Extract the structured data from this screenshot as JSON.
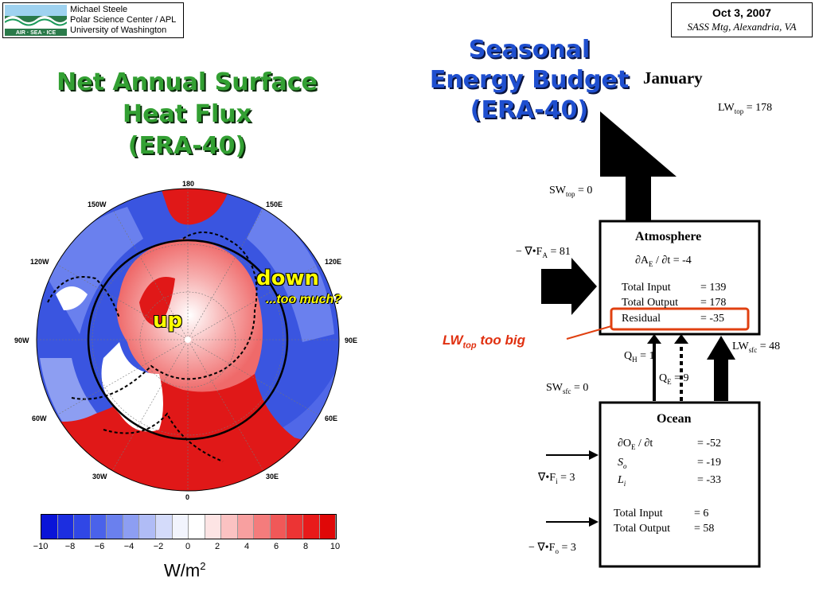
{
  "header": {
    "logo_caption": "AIR · SEA · ICE",
    "author_lines": [
      "Michael Steele",
      "Polar Science Center / APL",
      "University of Washington"
    ],
    "date": "Oct 3, 2007",
    "meeting": "SASS Mtg, Alexandria, VA"
  },
  "left_panel": {
    "title_lines": [
      "Net Annual Surface",
      "Heat Flux",
      "(ERA-40)"
    ],
    "longitude_labels": {
      "l180": "180",
      "l150w": "150W",
      "l150e": "150E",
      "l120w": "120W",
      "l120e": "120E",
      "l90w": "90W",
      "l90e": "90E",
      "l60w": "60W",
      "l60e": "60E",
      "l30w": "30W",
      "l30e": "30E",
      "l0": "0"
    },
    "annotations": {
      "down": "down",
      "too_much": "...too much?",
      "up": "up"
    },
    "colorbar": {
      "ticks": [
        "−10",
        "−8",
        "−6",
        "−4",
        "−2",
        "0",
        "2",
        "4",
        "6",
        "8",
        "10"
      ],
      "colors": [
        "#0a14d8",
        "#1c2ee0",
        "#3047e6",
        "#4a62ea",
        "#6a80ee",
        "#8d9ef2",
        "#b0bcf6",
        "#d4dbfa",
        "#f2f4fd",
        "#ffffff",
        "#fde4e4",
        "#fbc2c2",
        "#f8a0a0",
        "#f47c7c",
        "#f05858",
        "#ec3434",
        "#e81a1a",
        "#e00808"
      ],
      "units": "W/m",
      "units_sup": "2"
    },
    "colors": {
      "red_region": "#e01818",
      "blue_region": "#3a55e0"
    }
  },
  "right_panel": {
    "title_lines": [
      "Seasonal",
      "Energy Budget",
      "(ERA-40)"
    ],
    "month": "January",
    "lw_top": "LW",
    "lw_top_sub": "top",
    "lw_top_value": " = 178",
    "sw_top": "SW",
    "sw_top_sub": "top",
    "sw_top_value": " = 0",
    "div_fa": "− ∇•F",
    "div_fa_sub": "A",
    "div_fa_value": " = 81",
    "atmosphere": {
      "title": "Atmosphere",
      "tendency": "∂A",
      "tendency_sub": "E",
      "tendency_rest": " / ∂t = -4",
      "input_label": "Total Input",
      "input_value": "= 139",
      "output_label": "Total Output",
      "output_value": "= 178",
      "residual_label": "Residual",
      "residual_value": "= -35"
    },
    "note": "LW",
    "note_sub": "top",
    "note_rest": " too big",
    "qh": "Q",
    "qh_sub": "H",
    "qh_value": " = 1",
    "qe": "Q",
    "qe_sub": "E",
    "qe_value": " = 9",
    "lw_sfc": "LW",
    "lw_sfc_sub": "sfc",
    "lw_sfc_value": " = 48",
    "sw_sfc": "SW",
    "sw_sfc_sub": "sfc",
    "sw_sfc_value": " = 0",
    "ocean": {
      "title": "Ocean",
      "tendency": "∂O",
      "tendency_sub": "E",
      "tendency_rest": " / ∂t",
      "tendency_value": "= -52",
      "so_label": "S",
      "so_sub": "o",
      "so_value": "= -19",
      "li_label": "L",
      "li_sub": "i",
      "li_value": "= -33",
      "input_label": "Total Input",
      "input_value": "= 6",
      "output_label": "Total Output",
      "output_value": "= 58"
    },
    "div_fi": "∇•F",
    "div_fi_sub": "i",
    "div_fi_value": " = 3",
    "div_fo": "− ∇•F",
    "div_fo_sub": "o",
    "div_fo_value": " = 3"
  }
}
